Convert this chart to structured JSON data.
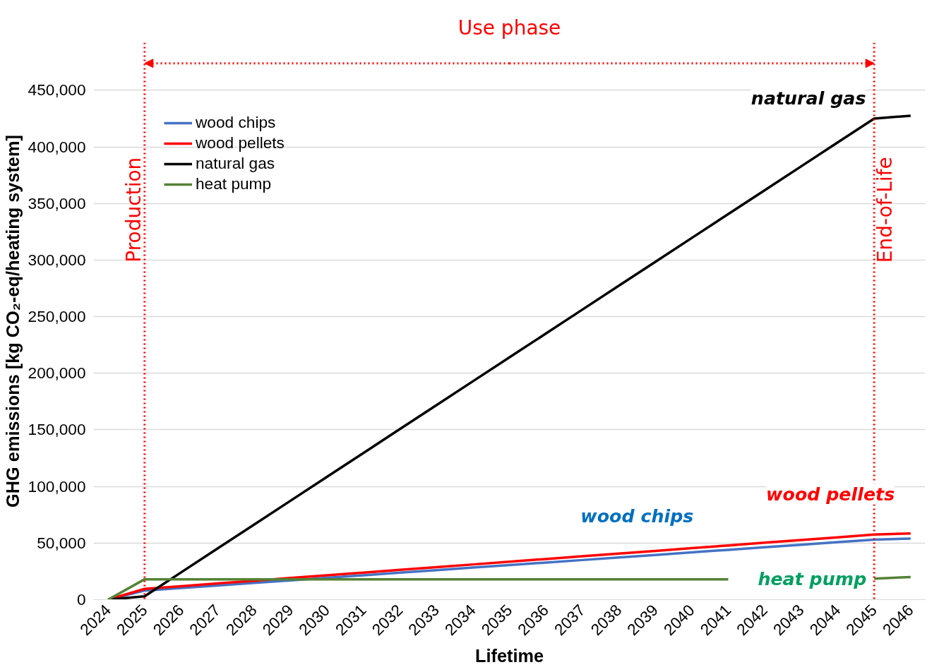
{
  "chart_data": {
    "type": "line",
    "xlabel": "Lifetime",
    "ylabel": "GHG emissions [kg CO₂-eq/heating system]",
    "categories": [
      "2024",
      "2025",
      "2026",
      "2027",
      "2028",
      "2029",
      "2030",
      "2031",
      "2032",
      "2033",
      "2034",
      "2035",
      "2036",
      "2037",
      "2038",
      "2039",
      "2040",
      "2041",
      "2042",
      "2043",
      "2044",
      "2045",
      "2046"
    ],
    "series": [
      {
        "name": "wood chips",
        "color": "#4472c4",
        "values": [
          0,
          8000,
          10300,
          12500,
          14800,
          17000,
          19300,
          21500,
          23800,
          26000,
          28300,
          30500,
          32800,
          35000,
          37300,
          39500,
          41800,
          44000,
          46300,
          48500,
          50800,
          53000,
          54000
        ]
      },
      {
        "name": "wood pellets",
        "color": "#ff0000",
        "values": [
          0,
          9500,
          11900,
          14300,
          16700,
          19100,
          21500,
          23900,
          26300,
          28700,
          31100,
          33500,
          35900,
          38300,
          40700,
          43100,
          45500,
          47900,
          50300,
          52700,
          55100,
          57500,
          58500
        ]
      },
      {
        "name": "natural gas",
        "color": "#000000",
        "values": [
          0,
          3000,
          24100,
          45200,
          66300,
          87400,
          108500,
          129600,
          150700,
          171800,
          192900,
          214000,
          235100,
          256200,
          277300,
          298400,
          319500,
          340600,
          361700,
          382800,
          403900,
          425000,
          427500
        ]
      },
      {
        "name": "heat pump",
        "color": "#548235",
        "values": [
          0,
          18000,
          18000,
          18000,
          18000,
          18000,
          18000,
          18000,
          18000,
          18000,
          18000,
          18000,
          18000,
          18000,
          18000,
          18000,
          18000,
          18000,
          null,
          null,
          null,
          18500,
          20000
        ]
      }
    ],
    "ylim": [
      0,
      492000
    ],
    "yticks": [
      {
        "value": 0,
        "label": "0"
      },
      {
        "value": 50000,
        "label": "50,000"
      },
      {
        "value": 100000,
        "label": "100,000"
      },
      {
        "value": 150000,
        "label": "150,000"
      },
      {
        "value": 200000,
        "label": "200,000"
      },
      {
        "value": 250000,
        "label": "250,000"
      },
      {
        "value": 300000,
        "label": "300,000"
      },
      {
        "value": 350000,
        "label": "350,000"
      },
      {
        "value": 400000,
        "label": "400,000"
      },
      {
        "value": 450000,
        "label": "450,000"
      }
    ],
    "ref_lines": [
      {
        "axis": "x",
        "value": "2025",
        "color": "#ff0000",
        "line_style": "dotted"
      },
      {
        "axis": "x",
        "value": "2045",
        "color": "#ff0000",
        "line_style": "dotted"
      }
    ],
    "annotations": [
      "Use phase",
      "Production",
      "End-of-Life",
      "natural gas",
      "wood pellets",
      "wood chips",
      "heat pump"
    ],
    "grid": "y",
    "legend": "top left",
    "marker": "none",
    "line_style": "solid"
  }
}
